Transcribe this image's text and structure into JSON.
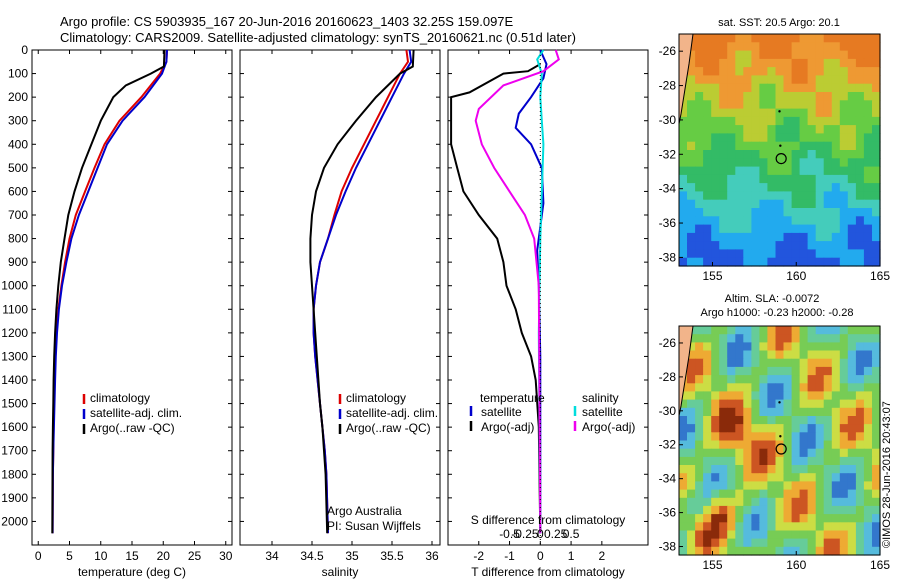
{
  "header": {
    "line1": "Argo profile: CS 5903935_167 20-Jun-2016 20160623_1403 32.25S 159.097E",
    "line2": "Climatology: CARS2009. Satellite-adjusted climatology: synTS_20160621.nc (0.51d later)"
  },
  "colors": {
    "clim": "#dd0000",
    "sat": "#0000cc",
    "argo": "#000000",
    "sal_sat": "#00dddd",
    "sal_argo": "#ee00ee"
  },
  "chart_data": [
    {
      "type": "line",
      "name": "temperature",
      "xlabel": "temperature (deg C)",
      "ylabel": "",
      "xlim": [
        -1,
        31
      ],
      "ylim": [
        2100,
        0
      ],
      "xticks": [
        "0",
        "5",
        "10",
        "15",
        "20",
        "25",
        "30"
      ],
      "xtick_values": [
        0,
        5,
        10,
        15,
        20,
        25,
        30
      ],
      "yticks": [
        "0",
        "100",
        "200",
        "300",
        "400",
        "500",
        "600",
        "700",
        "800",
        "900",
        "1000",
        "1100",
        "1200",
        "1300",
        "1400",
        "1500",
        "1600",
        "1700",
        "1800",
        "1900",
        "2000"
      ],
      "ytick_values": [
        0,
        100,
        200,
        300,
        400,
        500,
        600,
        700,
        800,
        900,
        1000,
        1100,
        1200,
        1300,
        1400,
        1500,
        1600,
        1700,
        1800,
        1900,
        2000
      ],
      "legend": [
        "climatology",
        "satellite-adj. clim.",
        "Argo(..raw -QC)"
      ],
      "series": [
        {
          "name": "climatology",
          "color": "clim",
          "x": [
            20.6,
            20.5,
            19.5,
            16.5,
            13,
            10.6,
            9,
            7.5,
            6,
            5,
            4.3,
            3.7,
            3.2,
            2.9,
            2.7,
            2.6,
            2.5,
            2.45,
            2.4,
            2.35,
            2.3
          ],
          "y": [
            0,
            50,
            100,
            200,
            300,
            400,
            500,
            600,
            700,
            800,
            900,
            1000,
            1100,
            1200,
            1300,
            1400,
            1500,
            1600,
            1700,
            1800,
            2050
          ]
        },
        {
          "name": "satellite-adj. clim.",
          "color": "sat",
          "x": [
            20.6,
            20.5,
            19.8,
            17,
            13.5,
            11,
            9.5,
            8,
            6.5,
            5.3,
            4.5,
            3.8,
            3.3,
            3,
            2.8,
            2.7,
            2.6,
            2.5,
            2.4,
            2.35,
            2.3
          ],
          "y": [
            0,
            50,
            100,
            200,
            300,
            400,
            500,
            600,
            700,
            800,
            900,
            1000,
            1100,
            1200,
            1300,
            1400,
            1500,
            1600,
            1700,
            1800,
            2050
          ]
        },
        {
          "name": "Argo(..raw -QC)",
          "color": "argo",
          "x": [
            20.2,
            20.1,
            18,
            14,
            12,
            10,
            8.5,
            7,
            5.8,
            4.8,
            4.2,
            3.6,
            3.2,
            2.9,
            2.7,
            2.55,
            2.45,
            2.4,
            2.35,
            2.3,
            2.25
          ],
          "y": [
            0,
            70,
            100,
            150,
            200,
            300,
            400,
            500,
            600,
            700,
            800,
            900,
            1000,
            1100,
            1200,
            1300,
            1400,
            1500,
            1600,
            1700,
            2050
          ]
        }
      ]
    },
    {
      "type": "line",
      "name": "salinity",
      "xlabel": "salinity",
      "xlim": [
        33.6,
        36.1
      ],
      "ylim": [
        2100,
        0
      ],
      "xticks": [
        "34",
        "34.5",
        "35",
        "35.5",
        "36"
      ],
      "xtick_values": [
        34,
        34.5,
        35,
        35.5,
        36
      ],
      "legend": [
        "climatology",
        "satellite-adj. clim.",
        "Argo(..raw -QC)"
      ],
      "annotation": [
        "Argo Australia",
        "PI: Susan Wijffels"
      ],
      "series": [
        {
          "name": "climatology",
          "color": "clim",
          "x": [
            35.68,
            35.7,
            35.6,
            35.45,
            35.3,
            35.15,
            35.0,
            34.87,
            34.78,
            34.7,
            34.6,
            34.55,
            34.52,
            34.52,
            34.54,
            34.57,
            34.6,
            34.63,
            34.66,
            34.68,
            34.7
          ],
          "y": [
            0,
            50,
            100,
            200,
            300,
            400,
            500,
            600,
            700,
            800,
            900,
            1000,
            1100,
            1200,
            1300,
            1400,
            1500,
            1600,
            1700,
            1800,
            2050
          ]
        },
        {
          "name": "satellite-adj. clim.",
          "color": "sat",
          "x": [
            35.72,
            35.74,
            35.65,
            35.5,
            35.35,
            35.2,
            35.05,
            34.92,
            34.8,
            34.7,
            34.6,
            34.55,
            34.52,
            34.52,
            34.54,
            34.57,
            34.6,
            34.63,
            34.66,
            34.68,
            34.7
          ],
          "y": [
            0,
            50,
            100,
            200,
            300,
            400,
            500,
            600,
            700,
            800,
            900,
            1000,
            1100,
            1200,
            1300,
            1400,
            1500,
            1600,
            1700,
            1800,
            2050
          ]
        },
        {
          "name": "Argo(..raw -QC)",
          "color": "argo",
          "x": [
            35.77,
            35.76,
            35.6,
            35.3,
            35.05,
            34.82,
            34.65,
            34.55,
            34.5,
            34.48,
            34.48,
            34.5,
            34.52,
            34.54,
            34.56,
            34.58,
            34.6,
            34.63,
            34.65,
            34.67,
            34.69
          ],
          "y": [
            0,
            70,
            100,
            200,
            300,
            400,
            500,
            600,
            700,
            800,
            900,
            1000,
            1100,
            1200,
            1300,
            1400,
            1500,
            1600,
            1700,
            1800,
            2050
          ]
        }
      ]
    },
    {
      "type": "line",
      "name": "difference",
      "xlabel": "T difference from climatology",
      "top_label": "S difference from climatology",
      "xlim": [
        -3,
        3.5
      ],
      "ylim": [
        2100,
        0
      ],
      "xticks": [
        "-2",
        "-1",
        "0",
        "1",
        "2"
      ],
      "xtick_values": [
        -2,
        -1,
        0,
        1,
        2
      ],
      "sticks": [
        "-0.5",
        "-0.25",
        "0",
        "0.25",
        "0.5"
      ],
      "stick_values": [
        -0.5,
        -0.25,
        0,
        0.25,
        0.5
      ],
      "legend_left": [
        "temperature",
        "satellite",
        "Argo(-adj)"
      ],
      "legend_right": [
        "salinity",
        "satellite",
        "Argo(-adj)"
      ],
      "series": [
        {
          "name": "T satellite",
          "color": "sat",
          "x": [
            0,
            0.1,
            0.2,
            0.1,
            -0.3,
            -0.7,
            -0.8,
            -0.3,
            0.05,
            0.1,
            -0.1,
            -0.05,
            0,
            0
          ],
          "y": [
            0,
            30,
            60,
            120,
            200,
            270,
            330,
            400,
            500,
            650,
            850,
            1000,
            1300,
            2050
          ]
        },
        {
          "name": "T Argo(-adj)",
          "color": "argo",
          "x": [
            0,
            -0.4,
            -1.2,
            -2.3,
            -2.9,
            -2.9,
            -2.7,
            -2.5,
            -2.0,
            -1.4,
            -1.2,
            -1.1,
            -0.8,
            -0.6,
            -0.3,
            -0.15,
            -0.05,
            0
          ],
          "y": [
            60,
            90,
            100,
            180,
            200,
            400,
            500,
            600,
            700,
            800,
            900,
            1000,
            1100,
            1200,
            1300,
            1400,
            1600,
            2050
          ]
        },
        {
          "name": "S satellite",
          "color": "sal_sat",
          "x": [
            0.1,
            -0.1,
            0.05,
            0.0,
            0.05,
            0.1,
            0.0,
            -0.05,
            0.0
          ],
          "y": [
            0,
            40,
            100,
            200,
            300,
            400,
            800,
            1200,
            2050
          ]
        },
        {
          "name": "S Argo(-adj)",
          "color": "sal_argo",
          "x": [
            0.5,
            0.6,
            0.1,
            -1.2,
            -2.0,
            -2.1,
            -1.9,
            -1.5,
            -1.0,
            -0.5,
            -0.2,
            -0.05,
            0
          ],
          "y": [
            0,
            40,
            90,
            150,
            250,
            300,
            400,
            500,
            600,
            700,
            800,
            1000,
            2050
          ]
        }
      ]
    }
  ],
  "maps": {
    "sst": {
      "title": "sat. SST: 20.5 Argo: 20.1",
      "xticks": [
        "155",
        "160",
        "165"
      ],
      "xtick_values": [
        155,
        160,
        165
      ],
      "yticks": [
        "-26",
        "-28",
        "-30",
        "-32",
        "-34",
        "-36",
        "-38"
      ],
      "ytick_values": [
        -26,
        -28,
        -30,
        -32,
        -34,
        -36,
        -38
      ],
      "lon_range": [
        153,
        165
      ],
      "lat_range": [
        -38.5,
        -25
      ]
    },
    "sla": {
      "title1": "Altim. SLA: -0.0072",
      "title2": "Argo h1000: -0.23 h2000: -0.28",
      "xticks": [
        "155",
        "160",
        "165"
      ],
      "xtick_values": [
        155,
        160,
        165
      ],
      "yticks": [
        "-26",
        "-28",
        "-30",
        "-32",
        "-34",
        "-36",
        "-38"
      ],
      "ytick_values": [
        -26,
        -28,
        -30,
        -32,
        -34,
        -36,
        -38
      ],
      "lon_range": [
        153,
        165
      ],
      "lat_range": [
        -38.5,
        -25
      ]
    },
    "float_lon": 159.1,
    "float_lat": -32.25
  },
  "credit": "©IMOS 28-Jun-2016 20:43:07"
}
